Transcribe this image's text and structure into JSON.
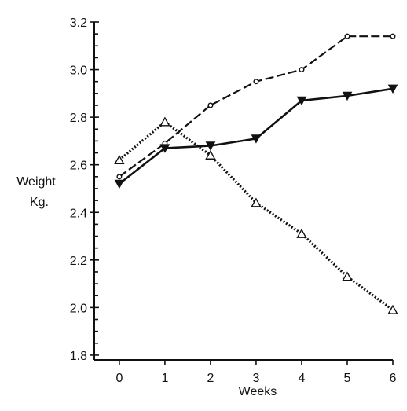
{
  "chart_data": {
    "type": "line",
    "title": "",
    "xlabel": "Weeks",
    "ylabel_lines": [
      "Weight",
      "Kg."
    ],
    "x": [
      0,
      1,
      2,
      3,
      4,
      5,
      6
    ],
    "xlim": [
      -0.55,
      6.0
    ],
    "ylim": [
      1.78,
      3.2
    ],
    "x_ticks": [
      0,
      1,
      2,
      3,
      4,
      5,
      6
    ],
    "x_tick_labels": [
      "0",
      "1",
      "2",
      "3",
      "4",
      "5",
      "6"
    ],
    "y_ticks": [
      1.8,
      2.0,
      2.2,
      2.4,
      2.6,
      2.8,
      3.0,
      3.2
    ],
    "y_tick_labels": [
      "1.8",
      "2.0",
      "2.2",
      "2.4",
      "2.6",
      "2.8",
      "3.0",
      "3.2"
    ],
    "y_minor_step": 0.05,
    "grid": false,
    "legend": "none",
    "series": [
      {
        "marker": "open-circle",
        "line_style": "dashed",
        "color": "#111111",
        "values": [
          2.55,
          2.69,
          2.85,
          2.95,
          3.0,
          3.14,
          3.14
        ]
      },
      {
        "marker": "filled-triangle-down",
        "line_style": "solid",
        "color": "#111111",
        "values": [
          2.52,
          2.67,
          2.68,
          2.71,
          2.87,
          2.89,
          2.92
        ]
      },
      {
        "marker": "open-triangle-up",
        "line_style": "dotted",
        "color": "#111111",
        "values": [
          2.62,
          2.78,
          2.64,
          2.44,
          2.31,
          2.13,
          1.99
        ]
      }
    ]
  }
}
